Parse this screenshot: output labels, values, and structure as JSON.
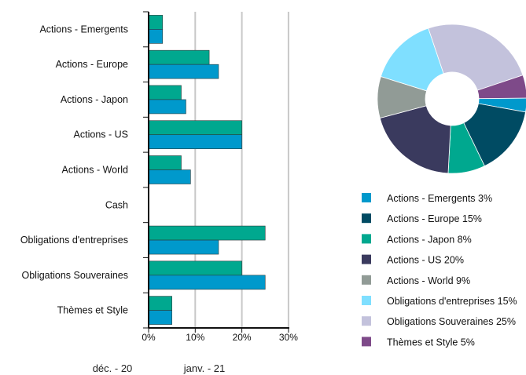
{
  "chart_data": [
    {
      "type": "bar",
      "orientation": "horizontal",
      "categories": [
        "Actions - Emergents",
        "Actions - Europe",
        "Actions - Japon",
        "Actions - US",
        "Actions - World",
        "Cash",
        "Obligations d'entreprises",
        "Obligations Souveraines",
        "Thèmes et Style"
      ],
      "series": [
        {
          "name": "déc. - 20",
          "color": "#00A88F",
          "values": [
            3,
            13,
            7,
            20,
            7,
            0,
            25,
            20,
            5
          ]
        },
        {
          "name": "janv. - 21",
          "color": "#0099CC",
          "values": [
            3,
            15,
            8,
            20,
            9,
            0,
            15,
            25,
            5
          ]
        }
      ],
      "xlim": [
        0,
        30
      ],
      "xticks": [
        0,
        10,
        20,
        30
      ],
      "xtick_labels": [
        "0%",
        "10%",
        "20%",
        "30%"
      ],
      "grid": true,
      "legend_position": "bottom"
    },
    {
      "type": "pie",
      "donut": true,
      "slices": [
        {
          "label": "Actions - Emergents 3%",
          "value": 3,
          "color": "#0099CC"
        },
        {
          "label": "Actions - Europe 15%",
          "value": 15,
          "color": "#004B63"
        },
        {
          "label": "Actions - Japon 8%",
          "value": 8,
          "color": "#00A88F"
        },
        {
          "label": "Actions - US 20%",
          "value": 20,
          "color": "#3A3A5E"
        },
        {
          "label": "Actions - World 9%",
          "value": 9,
          "color": "#919B96"
        },
        {
          "label": "Obligations d'entreprises 15%",
          "value": 15,
          "color": "#7FDFFF"
        },
        {
          "label": "Obligations Souveraines 25%",
          "value": 25,
          "color": "#C3C2DC"
        },
        {
          "label": "Thèmes et Style 5%",
          "value": 5,
          "color": "#7E4A89"
        }
      ],
      "legend_position": "bottom"
    }
  ]
}
